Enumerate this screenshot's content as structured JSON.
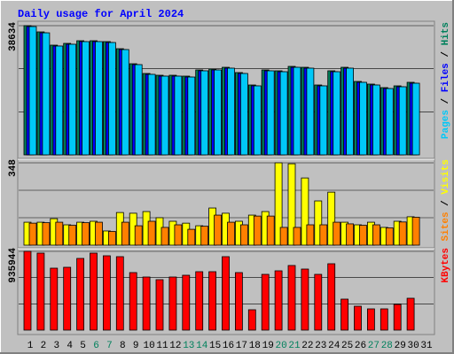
{
  "title": "Daily usage for April 2024",
  "categories": [
    "1",
    "2",
    "3",
    "4",
    "5",
    "6",
    "7",
    "8",
    "9",
    "10",
    "11",
    "12",
    "13",
    "14",
    "15",
    "16",
    "17",
    "18",
    "19",
    "20",
    "21",
    "22",
    "23",
    "24",
    "25",
    "26",
    "27",
    "28",
    "29",
    "30",
    "31"
  ],
  "category_colors": [
    "#000000",
    "#000000",
    "#000000",
    "#000000",
    "#000000",
    "#00805c",
    "#00805c",
    "#000000",
    "#000000",
    "#000000",
    "#000000",
    "#000000",
    "#00805c",
    "#00805c",
    "#000000",
    "#000000",
    "#000000",
    "#000000",
    "#000000",
    "#00805c",
    "#00805c",
    "#000000",
    "#000000",
    "#000000",
    "#000000",
    "#000000",
    "#00805c",
    "#00805c",
    "#000000",
    "#000000",
    "#000000"
  ],
  "legend_separator": " / ",
  "chart_data": [
    {
      "type": "bar",
      "ylim": [
        0,
        38634
      ],
      "yticks": [
        38634
      ],
      "series": [
        {
          "name": "Hits",
          "color": "#00805c",
          "values": [
            38634,
            36780,
            32810,
            33340,
            34130,
            34130,
            33870,
            31750,
            27250,
            24340,
            23810,
            23810,
            23550,
            25400,
            25670,
            26190,
            24610,
            20900,
            25400,
            25140,
            26460,
            26190,
            20900,
            25140,
            26190,
            21960,
            21170,
            20110,
            20640,
            21700,
            null
          ]
        },
        {
          "name": "Files",
          "color": "#0000ff",
          "values": [
            38370,
            36500,
            32550,
            33080,
            33870,
            33870,
            33600,
            31490,
            26990,
            24080,
            23550,
            23550,
            23280,
            25140,
            25400,
            25930,
            24340,
            20640,
            25140,
            24870,
            26190,
            25930,
            20640,
            24870,
            25930,
            21700,
            20900,
            19840,
            20370,
            21430,
            null
          ]
        },
        {
          "name": "Pages",
          "color": "#00c8f8",
          "values": [
            38370,
            36500,
            32550,
            33080,
            33870,
            33870,
            33600,
            31490,
            26990,
            24080,
            23550,
            23550,
            23280,
            25140,
            25400,
            25930,
            24340,
            20640,
            25140,
            24870,
            26190,
            25930,
            20640,
            24870,
            25930,
            21700,
            20900,
            19840,
            20370,
            21430,
            null
          ]
        }
      ]
    },
    {
      "type": "bar",
      "ylim": [
        0,
        348
      ],
      "yticks": [
        348
      ],
      "series": [
        {
          "name": "Visits",
          "color": "#ffff00",
          "values": [
            97,
            97,
            112,
            86,
            97,
            101,
            60,
            138,
            135,
            142,
            116,
            101,
            93,
            82,
            157,
            135,
            101,
            127,
            142,
            348,
            344,
            284,
            187,
            224,
            97,
            86,
            97,
            75,
            101,
            120,
            null
          ]
        },
        {
          "name": "Sites",
          "color": "#ff8000",
          "values": [
            93,
            95,
            97,
            84,
            95,
            97,
            58,
            97,
            82,
            101,
            75,
            86,
            67,
            80,
            127,
            97,
            86,
            123,
            123,
            75,
            75,
            86,
            86,
            97,
            90,
            84,
            86,
            73,
            98,
            118,
            null
          ]
        }
      ]
    },
    {
      "type": "bar",
      "ylim": [
        0,
        935944
      ],
      "yticks": [
        935944
      ],
      "series": [
        {
          "name": "KBytes",
          "color": "#ff0000",
          "values": [
            935944,
            914900,
            736100,
            746600,
            851800,
            914900,
            883300,
            872800,
            683500,
            631000,
            599400,
            631000,
            652000,
            694100,
            694100,
            872800,
            683500,
            241900,
            662500,
            704600,
            767700,
            725600,
            662500,
            788700,
            368100,
            283900,
            252400,
            252400,
            305000,
            378600,
            null
          ]
        }
      ]
    }
  ]
}
